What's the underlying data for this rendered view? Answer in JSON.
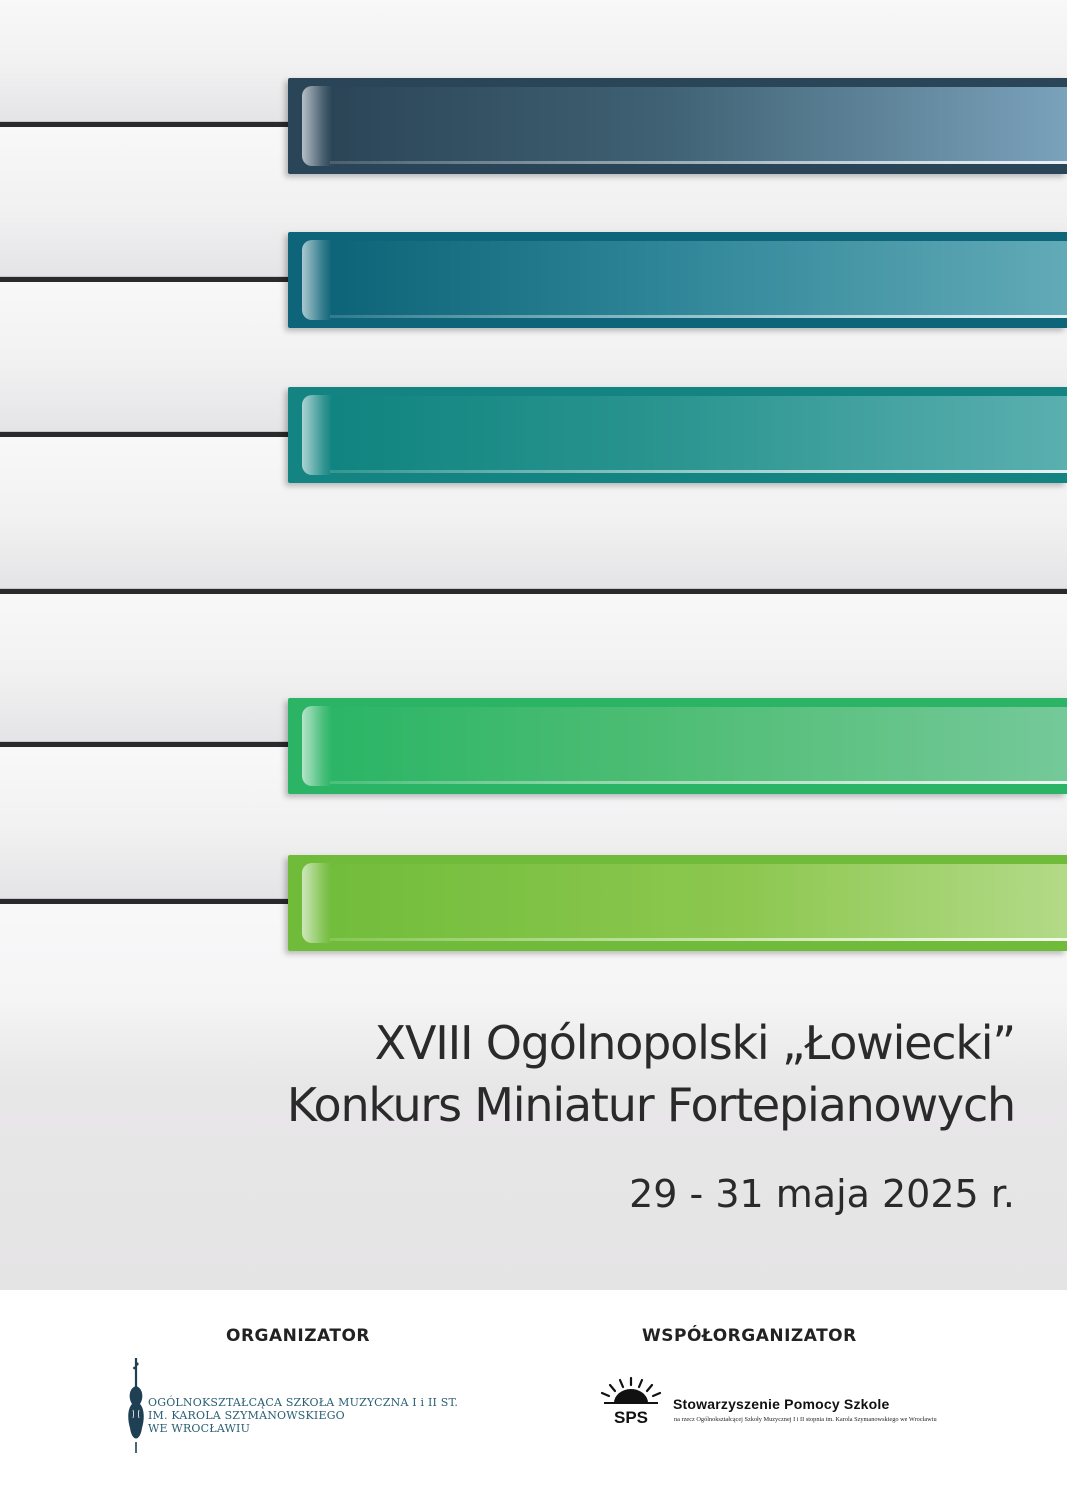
{
  "event": {
    "title_line1": "XVIII Ogólnopolski „Łowiecki”",
    "title_line2": "Konkurs Miniatur Fortepianowych",
    "dates": "29 - 31 maja 2025 r."
  },
  "colors": {
    "key_navy": "#2a4558",
    "key_petrol": "#0e6478",
    "key_teal": "#138481",
    "key_green": "#2bb465",
    "key_lime": "#71bb3b",
    "school_logo": "#2a5f73"
  },
  "footer": {
    "organizer": {
      "label": "ORGANIZATOR",
      "logo_icon": "violin-icon",
      "school_lines": [
        "OGÓLNOKSZTAŁCĄCA SZKOŁA MUZYCZNA I i II ST.",
        "IM. KAROLA SZYMANOWSKIEGO",
        "WE WROCŁAWIU"
      ]
    },
    "co_organizer": {
      "label": "WSPÓŁORGANIZATOR",
      "logo_icon": "sps-sunburst-icon",
      "logo_text": "SPS",
      "name": "Stowarzyszenie Pomocy Szkole",
      "subtitle": "na rzecz Ogólnokształcącej Szkoły Muzycznej I i II stopnia im. Karola Szymanowskiego we Wrocławiu"
    }
  }
}
